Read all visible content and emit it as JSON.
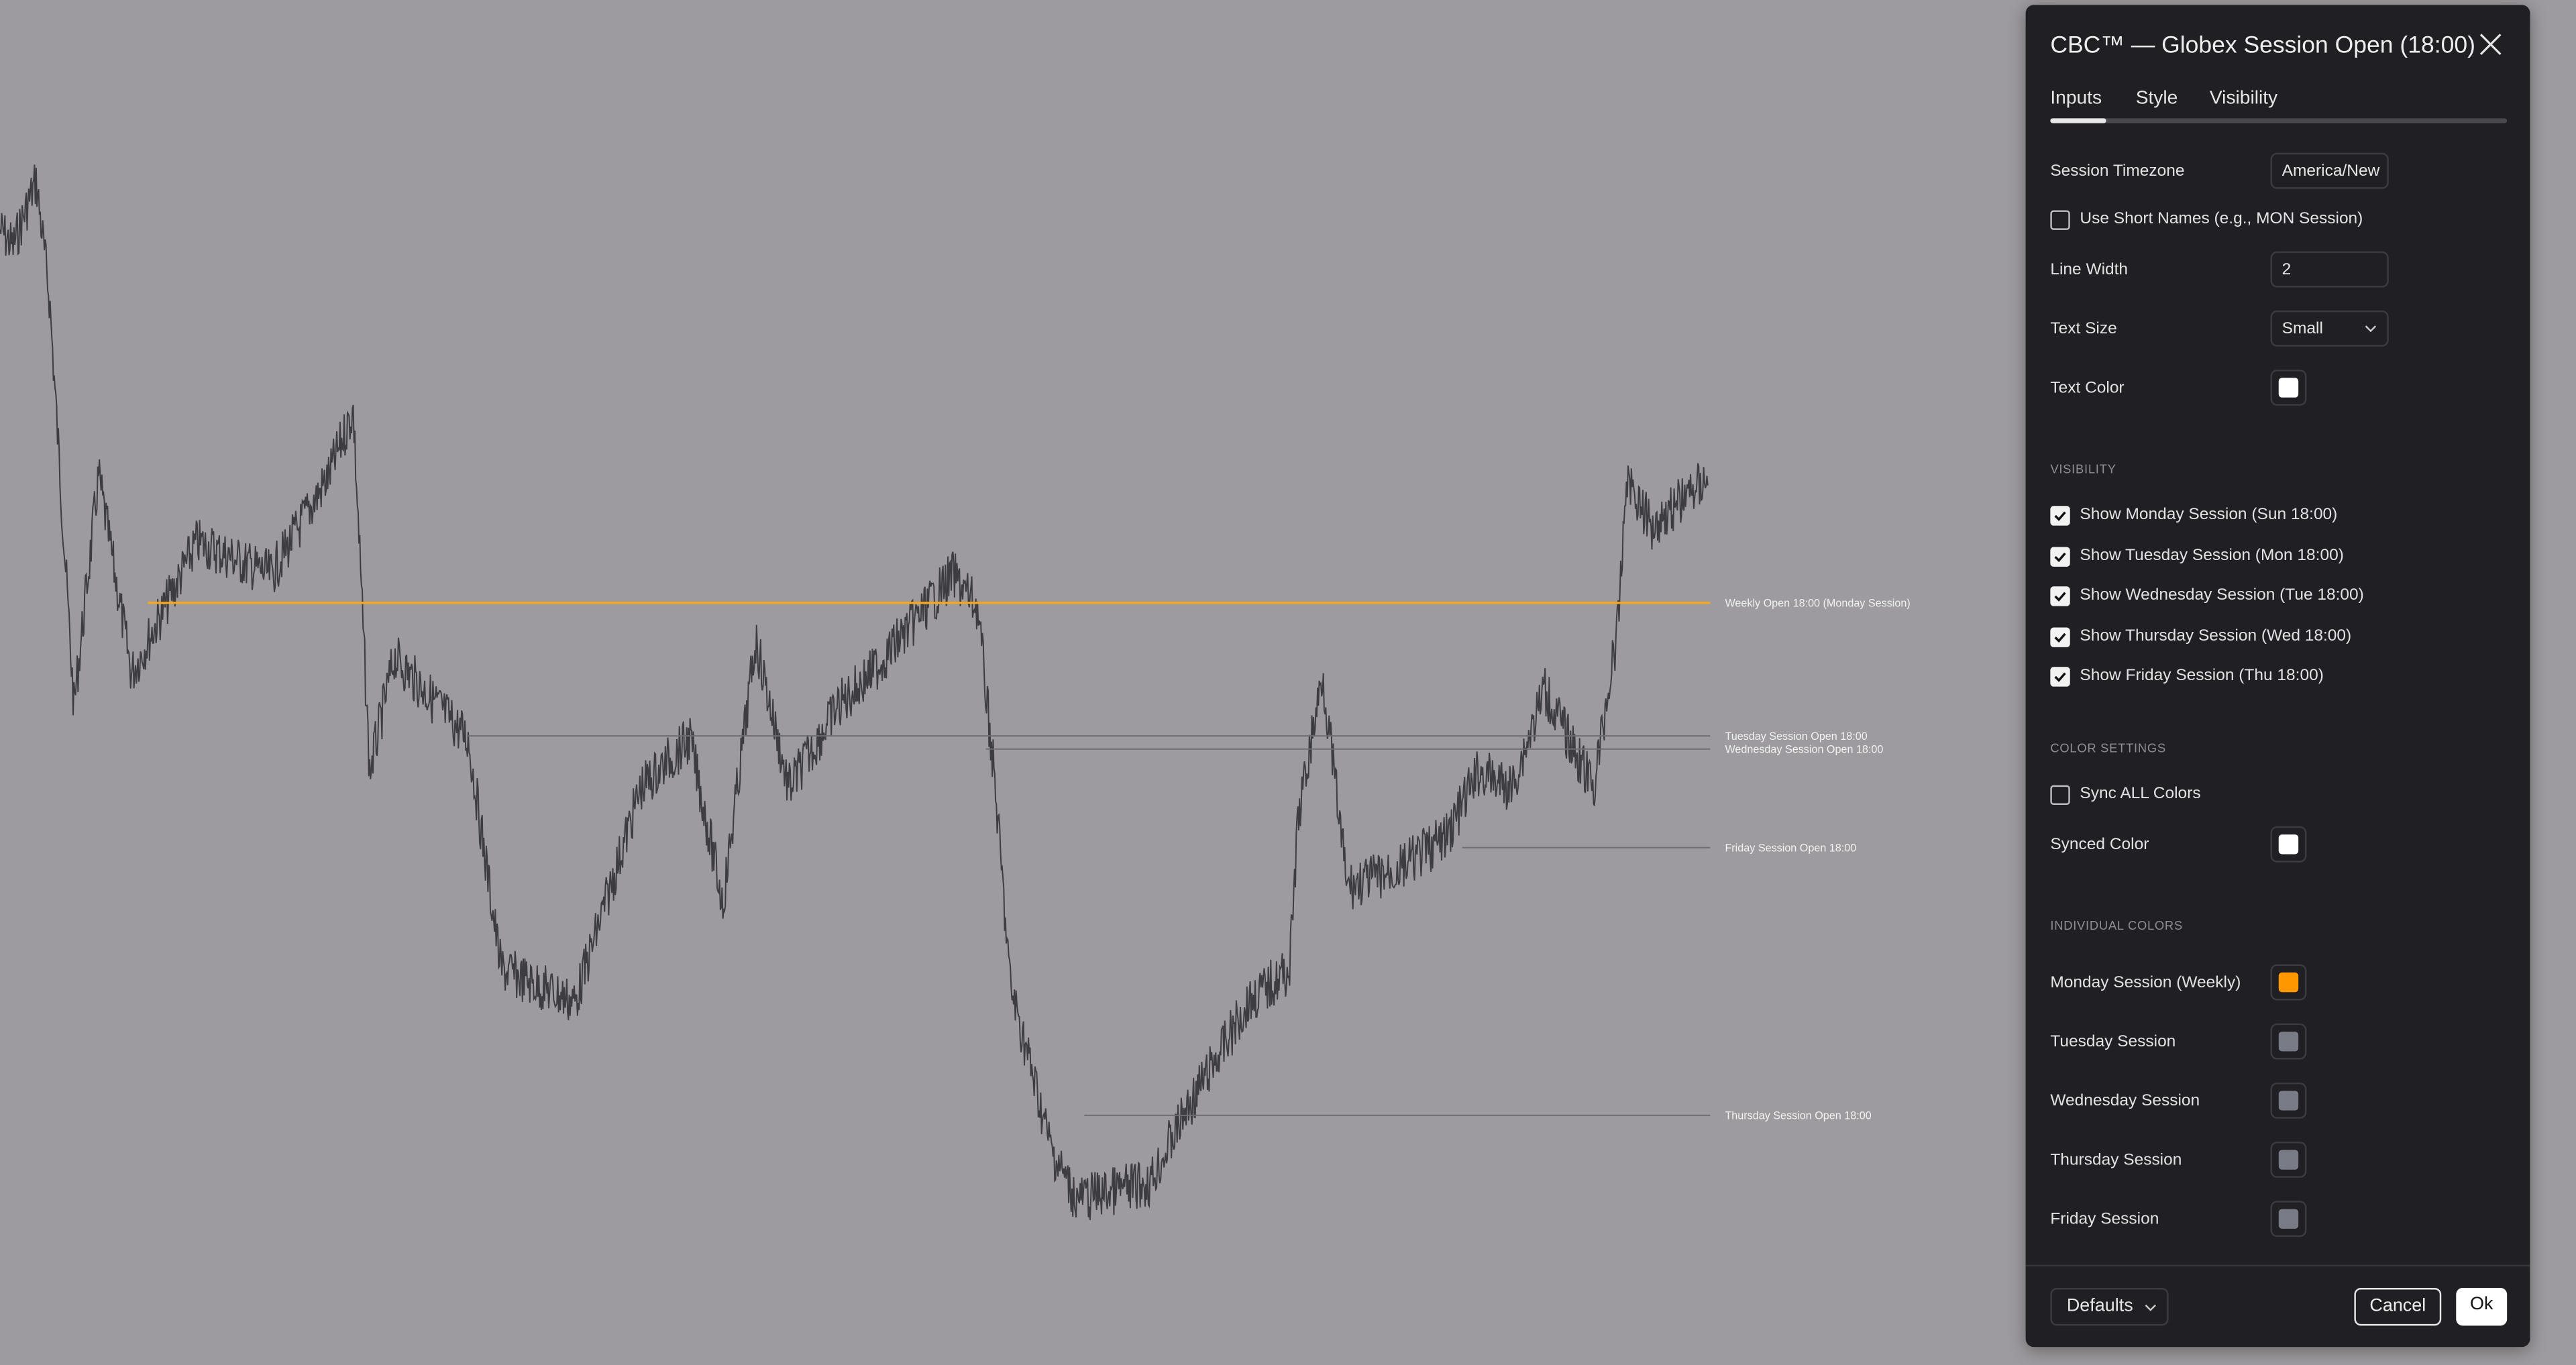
{
  "chart": {
    "background": "#9d9b9f",
    "price_color": "#3d3c40",
    "levels": [
      {
        "label": "Weekly Open 18:00 (Monday Session)",
        "color": "#f5a623"
      },
      {
        "label": "Tuesday Session Open 18:00",
        "color": "#6e6d72"
      },
      {
        "label": "Wednesday Session Open 18:00",
        "color": "#6e6d72"
      },
      {
        "label": "Friday Session Open 18:00",
        "color": "#6e6d72"
      },
      {
        "label": "Thursday Session Open 18:00",
        "color": "#6e6d72"
      }
    ]
  },
  "dialog": {
    "title": "CBC™ — Globex Session Open (18:00)",
    "tabs": [
      {
        "label": "Inputs",
        "active": true
      },
      {
        "label": "Style"
      },
      {
        "label": "Visibility"
      }
    ],
    "inputs": {
      "timezone_label": "Session Timezone",
      "timezone_value": "America/New",
      "short_names_label": "Use Short Names (e.g., MON Session)",
      "short_names_checked": false,
      "line_width_label": "Line Width",
      "line_width_value": "2",
      "text_size_label": "Text Size",
      "text_size_value": "Small",
      "text_color_label": "Text Color",
      "text_color": "#ffffff"
    },
    "visibility": {
      "heading": "VISIBILITY",
      "items": [
        {
          "label": "Show Monday Session (Sun 18:00)",
          "checked": true
        },
        {
          "label": "Show Tuesday Session (Mon 18:00)",
          "checked": true
        },
        {
          "label": "Show Wednesday Session (Tue 18:00)",
          "checked": true
        },
        {
          "label": "Show Thursday Session (Wed 18:00)",
          "checked": true
        },
        {
          "label": "Show Friday Session (Thu 18:00)",
          "checked": true
        }
      ]
    },
    "color_settings": {
      "heading": "COLOR SETTINGS",
      "sync_label": "Sync ALL Colors",
      "sync_checked": false,
      "synced_color_label": "Synced Color",
      "synced_color": "#ffffff"
    },
    "individual_colors": {
      "heading": "INDIVIDUAL COLORS",
      "items": [
        {
          "label": "Monday Session (Weekly)",
          "color": "#ff9800"
        },
        {
          "label": "Tuesday Session",
          "color": "#787b86"
        },
        {
          "label": "Wednesday Session",
          "color": "#787b86"
        },
        {
          "label": "Thursday Session",
          "color": "#787b86"
        },
        {
          "label": "Friday Session",
          "color": "#787b86"
        }
      ]
    },
    "footer": {
      "defaults_label": "Defaults",
      "cancel_label": "Cancel",
      "ok_label": "Ok"
    }
  }
}
